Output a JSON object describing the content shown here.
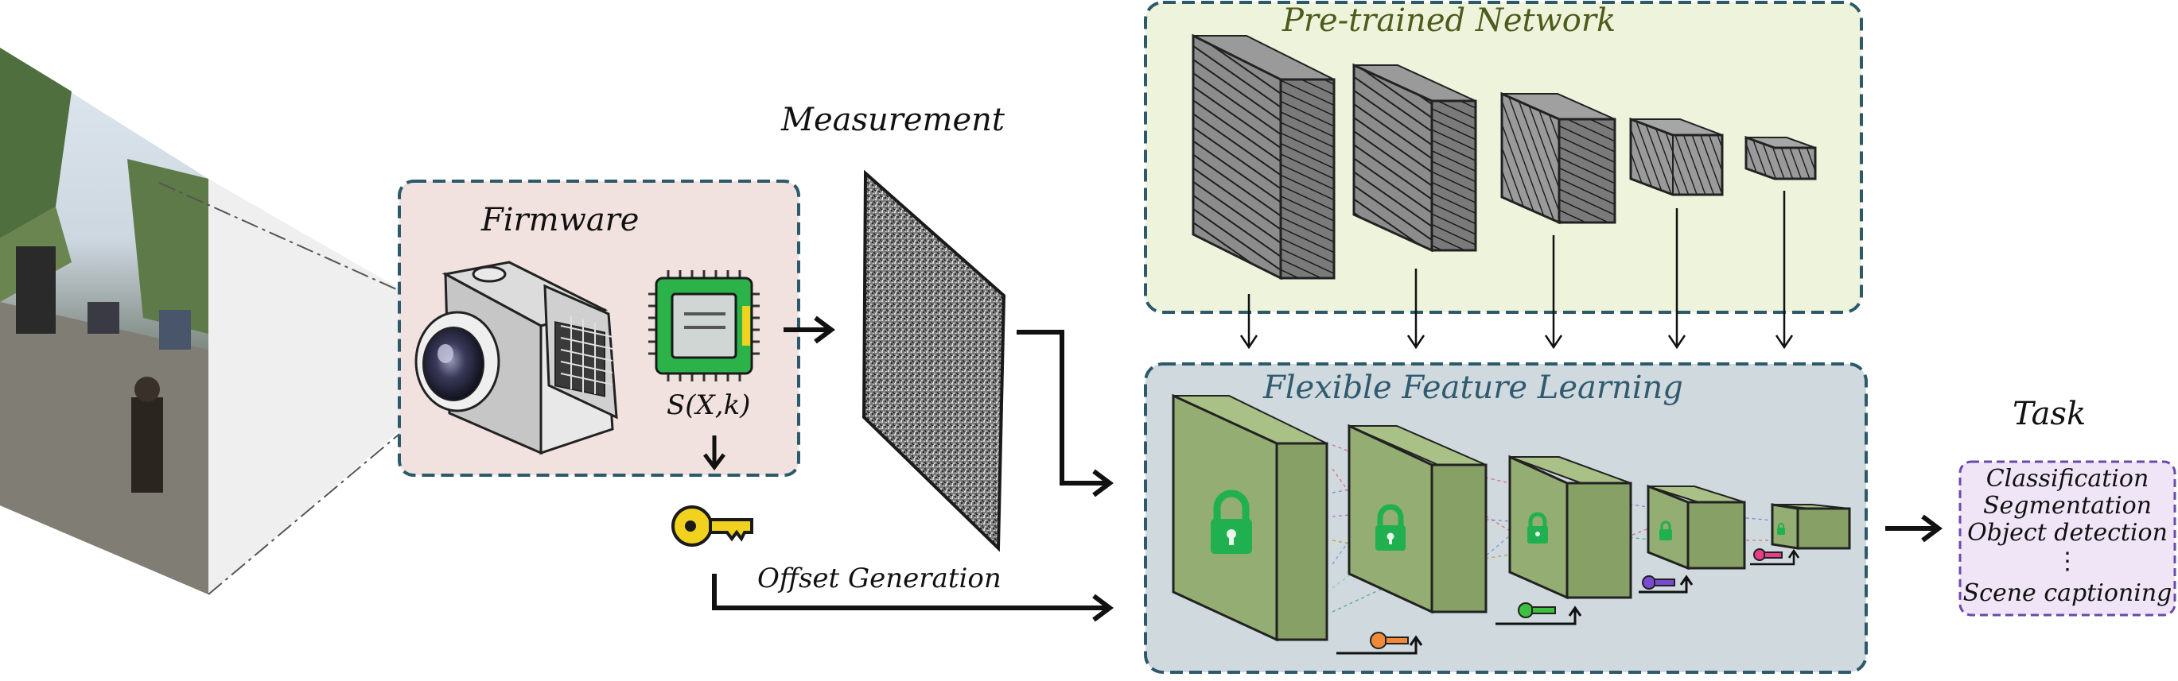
{
  "labels": {
    "firmware": "Firmware",
    "measurement": "Measurement",
    "pretrained": "Pre-trained Network",
    "flexible": "Flexible Feature Learning",
    "task": "Task",
    "sxk": "S(X,k)",
    "offset": "Offset Generation"
  },
  "task_items": [
    "Classification",
    "Segmentation",
    "Object detection",
    "⋮",
    "Scene captioning"
  ],
  "colors": {
    "firmware_bg": "#f2e2df",
    "pretrained_bg": "#eef3dc",
    "flexible_bg": "#d0d9de",
    "task_bg": "#efe5f7",
    "box_border": "#2d5a6b",
    "task_border": "#6a4aa8",
    "pretrained_text": "#4c5c1c",
    "flexible_text": "#2f5a70",
    "green_block": "#93ad72",
    "lock": "#20b050",
    "key_yellow": "#f1d21e",
    "key_orange": "#f08a38",
    "key_green": "#3cc040",
    "key_purple": "#7a4ad0",
    "key_pink": "#e83c8a"
  }
}
